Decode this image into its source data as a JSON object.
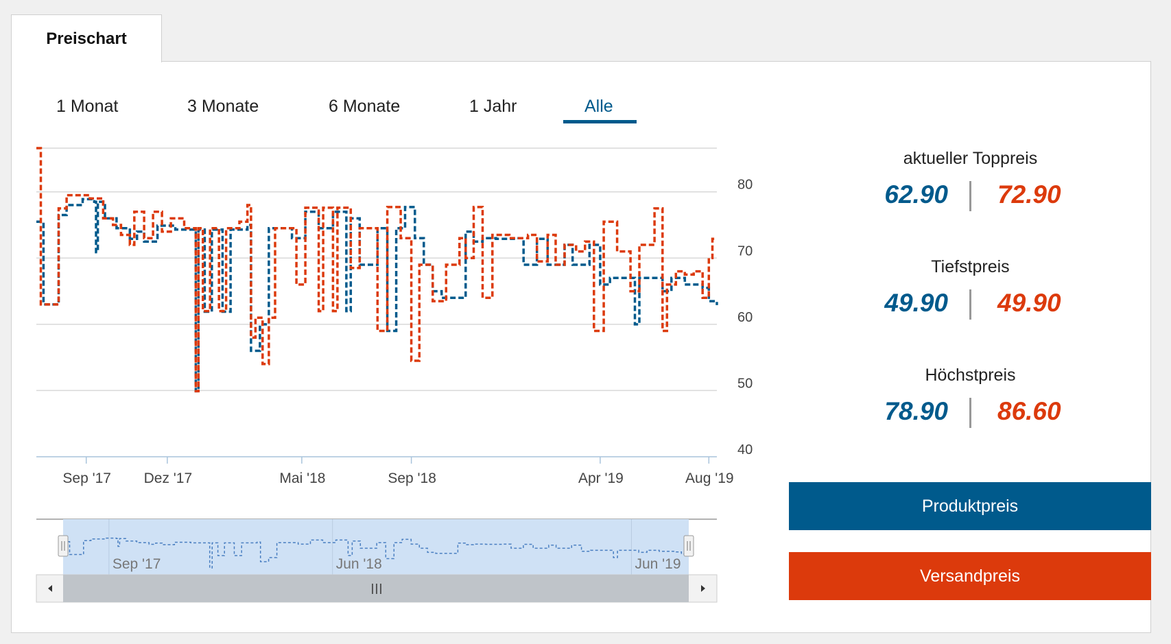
{
  "tab": {
    "label": "Preischart"
  },
  "ranges": [
    {
      "label": "1 Monat",
      "active": false
    },
    {
      "label": "3 Monate",
      "active": false
    },
    {
      "label": "6 Monate",
      "active": false
    },
    {
      "label": "1 Jahr",
      "active": false
    },
    {
      "label": "Alle",
      "active": true
    }
  ],
  "stats": {
    "current": {
      "title": "aktueller Toppreis",
      "product": "62.90",
      "shipping": "72.90"
    },
    "min": {
      "title": "Tiefstpreis",
      "product": "49.90",
      "shipping": "49.90"
    },
    "max": {
      "title": "Höchstpreis",
      "product": "78.90",
      "shipping": "86.60"
    }
  },
  "buttons": {
    "product": "Produktpreis",
    "shipping": "Versandpreis"
  },
  "colors": {
    "product": "#005a8c",
    "shipping": "#dc3a0c",
    "navigator_fill": "#cfe1f5",
    "navigator_line": "#4a7fc1"
  },
  "navigator": {
    "tick_labels": [
      "Sep '17",
      "Jun '18",
      "Jun '19"
    ],
    "scroll_left_icon": "arrow-left-icon",
    "scroll_right_icon": "arrow-right-icon",
    "grip_icon": "grip-icon"
  },
  "chart_data": {
    "type": "line",
    "step": true,
    "dashed": true,
    "grid": true,
    "legend": "none",
    "x_range": [
      "2017-07-07",
      "2019-08-10"
    ],
    "ylim": [
      40,
      86.6
    ],
    "yticks": [
      40,
      50,
      60,
      70,
      80
    ],
    "x_tick_labels": [
      {
        "date": "2017-09-01",
        "label": "Sep '17"
      },
      {
        "date": "2017-12-01",
        "label": "Dez '17"
      },
      {
        "date": "2018-05-01",
        "label": "Mai '18"
      },
      {
        "date": "2018-09-01",
        "label": "Sep '18"
      },
      {
        "date": "2019-04-01",
        "label": "Apr '19"
      },
      {
        "date": "2019-08-01",
        "label": "Aug '19"
      }
    ],
    "series": [
      {
        "name": "Produktpreis",
        "color": "#005a8c",
        "points": [
          [
            "2017-07-07",
            75.5
          ],
          [
            "2017-07-15",
            63
          ],
          [
            "2017-08-01",
            76.5
          ],
          [
            "2017-08-10",
            78
          ],
          [
            "2017-08-28",
            78.9
          ],
          [
            "2017-09-10",
            78.5
          ],
          [
            "2017-09-12",
            70.9
          ],
          [
            "2017-09-14",
            78.5
          ],
          [
            "2017-09-22",
            76
          ],
          [
            "2017-10-05",
            74.5
          ],
          [
            "2017-10-20",
            72.9
          ],
          [
            "2017-10-28",
            74
          ],
          [
            "2017-11-05",
            72.5
          ],
          [
            "2017-11-20",
            74.9
          ],
          [
            "2017-12-10",
            74.3
          ],
          [
            "2017-12-28",
            74.3
          ],
          [
            "2018-01-02",
            49.9
          ],
          [
            "2018-01-05",
            74.3
          ],
          [
            "2018-01-12",
            61.9
          ],
          [
            "2018-01-20",
            74.3
          ],
          [
            "2018-02-01",
            61.9
          ],
          [
            "2018-02-10",
            74.3
          ],
          [
            "2018-03-01",
            75
          ],
          [
            "2018-03-05",
            56
          ],
          [
            "2018-03-15",
            60
          ],
          [
            "2018-03-25",
            74.5
          ],
          [
            "2018-04-20",
            73
          ],
          [
            "2018-05-05",
            77
          ],
          [
            "2018-05-20",
            74.5
          ],
          [
            "2018-06-05",
            77
          ],
          [
            "2018-06-20",
            62
          ],
          [
            "2018-06-25",
            76
          ],
          [
            "2018-07-05",
            69
          ],
          [
            "2018-07-25",
            74.5
          ],
          [
            "2018-08-05",
            59
          ],
          [
            "2018-08-15",
            74.5
          ],
          [
            "2018-08-25",
            77.7
          ],
          [
            "2018-09-05",
            73
          ],
          [
            "2018-09-15",
            69
          ],
          [
            "2018-09-25",
            65
          ],
          [
            "2018-10-05",
            64
          ],
          [
            "2018-10-25",
            64
          ],
          [
            "2018-11-01",
            74
          ],
          [
            "2018-11-10",
            72.5
          ],
          [
            "2018-11-20",
            73
          ],
          [
            "2018-12-05",
            72.9
          ],
          [
            "2018-12-25",
            73
          ],
          [
            "2019-01-05",
            69
          ],
          [
            "2019-01-20",
            72.9
          ],
          [
            "2019-02-01",
            69
          ],
          [
            "2019-02-20",
            72
          ],
          [
            "2019-03-01",
            69
          ],
          [
            "2019-03-20",
            72
          ],
          [
            "2019-04-01",
            66
          ],
          [
            "2019-04-12",
            67
          ],
          [
            "2019-05-01",
            67
          ],
          [
            "2019-05-10",
            60
          ],
          [
            "2019-05-15",
            67
          ],
          [
            "2019-06-01",
            67
          ],
          [
            "2019-06-10",
            65
          ],
          [
            "2019-06-20",
            67
          ],
          [
            "2019-07-05",
            66
          ],
          [
            "2019-07-25",
            65.5
          ],
          [
            "2019-08-01",
            63.5
          ],
          [
            "2019-08-10",
            62.9
          ]
        ]
      },
      {
        "name": "Versandpreis",
        "color": "#dc3a0c",
        "points": [
          [
            "2017-07-07",
            86.6
          ],
          [
            "2017-07-12",
            63
          ],
          [
            "2017-07-28",
            63
          ],
          [
            "2017-08-01",
            77.5
          ],
          [
            "2017-08-10",
            79.5
          ],
          [
            "2017-08-25",
            79.5
          ],
          [
            "2017-09-05",
            79
          ],
          [
            "2017-09-20",
            76
          ],
          [
            "2017-10-01",
            75
          ],
          [
            "2017-10-10",
            73.5
          ],
          [
            "2017-10-20",
            72
          ],
          [
            "2017-10-25",
            77
          ],
          [
            "2017-11-05",
            73
          ],
          [
            "2017-11-15",
            77
          ],
          [
            "2017-11-25",
            74
          ],
          [
            "2017-12-05",
            76
          ],
          [
            "2017-12-20",
            74.5
          ],
          [
            "2017-12-28",
            74.5
          ],
          [
            "2018-01-02",
            49.9
          ],
          [
            "2018-01-05",
            74.5
          ],
          [
            "2018-01-10",
            62
          ],
          [
            "2018-01-18",
            74.5
          ],
          [
            "2018-01-28",
            62
          ],
          [
            "2018-02-05",
            74.5
          ],
          [
            "2018-02-20",
            75.5
          ],
          [
            "2018-03-01",
            78
          ],
          [
            "2018-03-05",
            58
          ],
          [
            "2018-03-10",
            61
          ],
          [
            "2018-03-18",
            54
          ],
          [
            "2018-03-25",
            61
          ],
          [
            "2018-04-01",
            74.5
          ],
          [
            "2018-04-25",
            66
          ],
          [
            "2018-05-05",
            77.6
          ],
          [
            "2018-05-20",
            62
          ],
          [
            "2018-05-25",
            77.6
          ],
          [
            "2018-06-05",
            62
          ],
          [
            "2018-06-10",
            77.6
          ],
          [
            "2018-06-25",
            68.5
          ],
          [
            "2018-07-05",
            74.5
          ],
          [
            "2018-07-25",
            59
          ],
          [
            "2018-08-05",
            77.7
          ],
          [
            "2018-08-20",
            73
          ],
          [
            "2018-09-01",
            54.5
          ],
          [
            "2018-09-10",
            69
          ],
          [
            "2018-09-25",
            63.5
          ],
          [
            "2018-10-10",
            69
          ],
          [
            "2018-10-25",
            73
          ],
          [
            "2018-11-01",
            70
          ],
          [
            "2018-11-10",
            77.7
          ],
          [
            "2018-11-20",
            64
          ],
          [
            "2018-12-01",
            73.5
          ],
          [
            "2018-12-20",
            73
          ],
          [
            "2019-01-10",
            73.5
          ],
          [
            "2019-01-20",
            69.5
          ],
          [
            "2019-02-01",
            73.5
          ],
          [
            "2019-02-10",
            69
          ],
          [
            "2019-02-20",
            72
          ],
          [
            "2019-03-05",
            71
          ],
          [
            "2019-03-15",
            72.5
          ],
          [
            "2019-03-25",
            59
          ],
          [
            "2019-04-05",
            75.5
          ],
          [
            "2019-04-20",
            71
          ],
          [
            "2019-05-05",
            65
          ],
          [
            "2019-05-15",
            72
          ],
          [
            "2019-06-01",
            77.5
          ],
          [
            "2019-06-10",
            59
          ],
          [
            "2019-06-15",
            66
          ],
          [
            "2019-06-25",
            68
          ],
          [
            "2019-07-05",
            67.5
          ],
          [
            "2019-07-15",
            68
          ],
          [
            "2019-07-25",
            64
          ],
          [
            "2019-08-01",
            70
          ],
          [
            "2019-08-05",
            72.9
          ],
          [
            "2019-08-10",
            72.9
          ]
        ]
      }
    ]
  }
}
